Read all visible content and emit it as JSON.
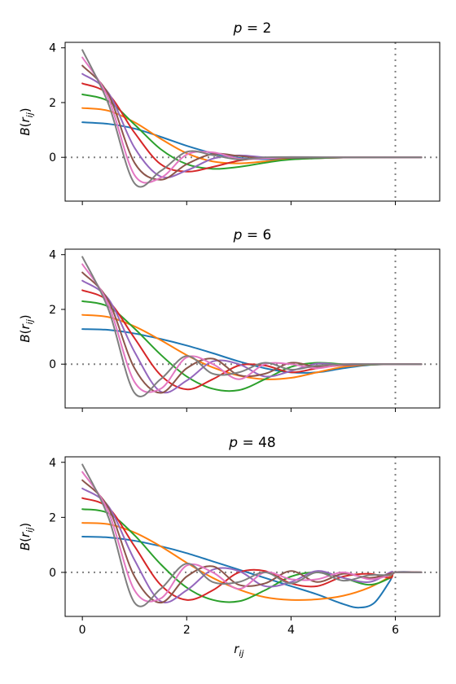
{
  "chart_data": [
    {
      "type": "line",
      "title": "p = 2",
      "p": 2,
      "ylabel": "B(r_ij)",
      "xlabel": "",
      "xlim": [
        -0.33,
        6.85
      ],
      "ylim": [
        -1.6,
        4.2
      ],
      "xticks": [
        0,
        2,
        4,
        6
      ],
      "yticks": [
        0,
        2,
        4
      ],
      "show_xtick_labels": false,
      "reference_lines": {
        "y": 0,
        "x": 6,
        "style": "dotted",
        "color": "#808080"
      },
      "series": [
        {
          "color": "#1f77b4",
          "x": [
            0,
            0.5,
            1,
            1.5,
            2,
            2.5,
            3,
            3.5,
            4,
            5,
            6,
            6.5
          ],
          "y": [
            1.28,
            1.22,
            1.05,
            0.75,
            0.42,
            0.15,
            -0.02,
            -0.07,
            -0.05,
            -0.01,
            0,
            0
          ]
        },
        {
          "color": "#ff7f0e",
          "x": [
            0,
            0.5,
            1,
            1.5,
            2,
            2.5,
            3,
            3.5,
            4,
            5,
            6,
            6.5
          ],
          "y": [
            1.8,
            1.7,
            1.28,
            0.68,
            0.15,
            -0.15,
            -0.22,
            -0.15,
            -0.07,
            -0.01,
            0,
            0
          ]
        },
        {
          "color": "#2ca02c",
          "x": [
            0,
            0.5,
            1,
            1.5,
            2,
            2.5,
            3,
            3.5,
            4,
            5,
            6,
            6.5
          ],
          "y": [
            2.3,
            2.05,
            1.2,
            0.3,
            -0.25,
            -0.42,
            -0.35,
            -0.2,
            -0.08,
            -0.01,
            0,
            0
          ]
        },
        {
          "color": "#d62728",
          "x": [
            0,
            0.5,
            1,
            1.5,
            2,
            2.5,
            3,
            3.5,
            4,
            5,
            6,
            6.5
          ],
          "y": [
            2.7,
            2.3,
            0.9,
            -0.25,
            -0.52,
            -0.35,
            -0.12,
            -0.02,
            -0.01,
            0,
            0,
            0
          ]
        },
        {
          "color": "#9467bd",
          "x": [
            0,
            0.5,
            1,
            1.5,
            2,
            2.5,
            3,
            3.5,
            4,
            5,
            6,
            6.5
          ],
          "y": [
            3.05,
            2.35,
            0.35,
            -0.7,
            -0.48,
            -0.05,
            0.07,
            0,
            -0.02,
            0,
            0,
            0
          ]
        },
        {
          "color": "#8c564b",
          "x": [
            0,
            0.5,
            1,
            1.5,
            2,
            2.5,
            3,
            3.5,
            4,
            5,
            6,
            6.5
          ],
          "y": [
            3.35,
            2.3,
            -0.2,
            -0.82,
            -0.25,
            0.12,
            0.05,
            -0.04,
            -0.01,
            0,
            0,
            0
          ]
        },
        {
          "color": "#e377c2",
          "x": [
            0,
            0.5,
            1,
            1.5,
            2,
            2.5,
            3,
            3.5,
            4,
            5,
            6,
            6.5
          ],
          "y": [
            3.65,
            2.15,
            -0.65,
            -0.75,
            0.1,
            0.18,
            -0.05,
            -0.04,
            0.01,
            0,
            0,
            0
          ]
        },
        {
          "color": "#7f7f7f",
          "x": [
            0,
            0.5,
            1,
            1.5,
            2,
            2.5,
            3,
            3.5,
            4,
            5,
            6,
            6.5
          ],
          "y": [
            3.92,
            1.95,
            -0.95,
            -0.5,
            0.2,
            0.08,
            -0.08,
            0,
            0.01,
            0,
            0,
            0
          ]
        }
      ]
    },
    {
      "type": "line",
      "title": "p = 6",
      "p": 6,
      "ylabel": "B(r_ij)",
      "xlabel": "",
      "xlim": [
        -0.33,
        6.85
      ],
      "ylim": [
        -1.6,
        4.2
      ],
      "xticks": [
        0,
        2,
        4,
        6
      ],
      "yticks": [
        0,
        2,
        4
      ],
      "show_xtick_labels": false,
      "reference_lines": {
        "y": 0,
        "x": 6,
        "style": "dotted",
        "color": "#808080"
      },
      "series": [
        {
          "color": "#1f77b4",
          "x": [
            0,
            0.5,
            1,
            1.5,
            2,
            2.5,
            3,
            3.5,
            4,
            4.5,
            5,
            5.5,
            6,
            6.5
          ],
          "y": [
            1.28,
            1.25,
            1.12,
            0.92,
            0.68,
            0.4,
            0.1,
            -0.15,
            -0.3,
            -0.3,
            -0.15,
            -0.03,
            0,
            0
          ]
        },
        {
          "color": "#ff7f0e",
          "x": [
            0,
            0.5,
            1,
            1.5,
            2,
            2.5,
            3,
            3.5,
            4,
            4.5,
            5,
            5.5,
            6,
            6.5
          ],
          "y": [
            1.8,
            1.72,
            1.38,
            0.88,
            0.33,
            -0.12,
            -0.42,
            -0.55,
            -0.5,
            -0.3,
            -0.1,
            -0.02,
            0,
            0
          ]
        },
        {
          "color": "#2ca02c",
          "x": [
            0,
            0.5,
            1,
            1.5,
            2,
            2.5,
            3,
            3.5,
            4,
            4.5,
            5,
            5.5,
            6,
            6.5
          ],
          "y": [
            2.3,
            2.1,
            1.3,
            0.35,
            -0.45,
            -0.9,
            -0.95,
            -0.55,
            -0.1,
            0.05,
            0,
            -0.02,
            0,
            0
          ]
        },
        {
          "color": "#d62728",
          "x": [
            0,
            0.5,
            1,
            1.5,
            2,
            2.5,
            3,
            3.5,
            4,
            4.5,
            5,
            5.5,
            6,
            6.5
          ],
          "y": [
            2.7,
            2.3,
            0.95,
            -0.4,
            -0.92,
            -0.55,
            -0.05,
            -0.05,
            -0.3,
            -0.15,
            -0.03,
            -0.01,
            0,
            0
          ]
        },
        {
          "color": "#9467bd",
          "x": [
            0,
            0.5,
            1,
            1.5,
            2,
            2.5,
            3,
            3.5,
            4,
            4.5,
            5,
            5.5,
            6,
            6.5
          ],
          "y": [
            3.05,
            2.38,
            0.45,
            -1.0,
            -0.6,
            0.1,
            0.0,
            -0.45,
            -0.25,
            0.02,
            -0.03,
            0,
            0,
            0
          ]
        },
        {
          "color": "#8c564b",
          "x": [
            0,
            0.5,
            1,
            1.5,
            2,
            2.5,
            3,
            3.5,
            4,
            4.5,
            5,
            5.5,
            6,
            6.5
          ],
          "y": [
            3.35,
            2.32,
            -0.15,
            -1.05,
            -0.15,
            0.2,
            -0.4,
            -0.35,
            0.05,
            -0.1,
            -0.02,
            0,
            0,
            0
          ]
        },
        {
          "color": "#e377c2",
          "x": [
            0,
            0.5,
            1,
            1.5,
            2,
            2.5,
            3,
            3.5,
            4,
            4.5,
            5,
            5.5,
            6,
            6.5
          ],
          "y": [
            3.65,
            2.18,
            -0.65,
            -0.9,
            0.25,
            0.0,
            -0.55,
            0.0,
            0.0,
            -0.15,
            0,
            0,
            0,
            0
          ]
        },
        {
          "color": "#7f7f7f",
          "x": [
            0,
            0.5,
            1,
            1.5,
            2,
            2.5,
            3,
            3.5,
            4,
            4.5,
            5,
            5.5,
            6,
            6.5
          ],
          "y": [
            3.92,
            2.0,
            -1.05,
            -0.55,
            0.3,
            -0.35,
            -0.3,
            0.05,
            -0.2,
            -0.05,
            0,
            0,
            0,
            0
          ]
        }
      ]
    },
    {
      "type": "line",
      "title": "p = 48",
      "p": 48,
      "ylabel": "B(r_ij)",
      "xlabel": "r_ij",
      "xlim": [
        -0.33,
        6.85
      ],
      "ylim": [
        -1.6,
        4.2
      ],
      "xticks": [
        0,
        2,
        4,
        6
      ],
      "yticks": [
        0,
        2,
        4
      ],
      "show_xtick_labels": true,
      "reference_lines": {
        "y": 0,
        "x": 6,
        "style": "dotted",
        "color": "#808080"
      },
      "series": [
        {
          "color": "#1f77b4",
          "x": [
            0,
            0.5,
            1,
            1.5,
            2,
            2.5,
            3,
            3.5,
            4,
            4.5,
            5,
            5.3,
            5.6,
            5.9,
            6,
            6.5
          ],
          "y": [
            1.3,
            1.27,
            1.15,
            0.95,
            0.7,
            0.4,
            0.1,
            -0.2,
            -0.5,
            -0.8,
            -1.15,
            -1.28,
            -1.1,
            -0.3,
            0,
            0
          ]
        },
        {
          "color": "#ff7f0e",
          "x": [
            0,
            0.5,
            1,
            1.5,
            2,
            2.5,
            3,
            3.5,
            4,
            4.5,
            5,
            5.5,
            5.9,
            6,
            6.5
          ],
          "y": [
            1.8,
            1.75,
            1.45,
            0.95,
            0.35,
            -0.2,
            -0.62,
            -0.9,
            -1.0,
            -0.98,
            -0.85,
            -0.55,
            -0.15,
            0,
            0
          ]
        },
        {
          "color": "#2ca02c",
          "x": [
            0,
            0.5,
            1,
            1.5,
            2,
            2.5,
            3,
            3.5,
            4,
            4.5,
            5,
            5.5,
            5.9,
            6,
            6.5
          ],
          "y": [
            2.3,
            2.15,
            1.35,
            0.3,
            -0.55,
            -1.0,
            -1.05,
            -0.65,
            -0.15,
            0.0,
            -0.2,
            -0.45,
            -0.2,
            0,
            0
          ]
        },
        {
          "color": "#d62728",
          "x": [
            0,
            0.5,
            1,
            1.5,
            2,
            2.5,
            3,
            3.5,
            4,
            4.5,
            5,
            5.5,
            5.9,
            6,
            6.5
          ],
          "y": [
            2.7,
            2.35,
            0.95,
            -0.45,
            -1.0,
            -0.65,
            0.0,
            0.05,
            -0.4,
            -0.5,
            -0.15,
            -0.05,
            -0.2,
            0,
            0
          ]
        },
        {
          "color": "#9467bd",
          "x": [
            0,
            0.5,
            1,
            1.5,
            2,
            2.5,
            3,
            3.5,
            4,
            4.5,
            5,
            5.5,
            5.9,
            6,
            6.5
          ],
          "y": [
            3.05,
            2.4,
            0.45,
            -1.05,
            -0.65,
            0.1,
            0.05,
            -0.5,
            -0.35,
            0.05,
            -0.2,
            -0.35,
            0.0,
            0,
            0
          ]
        },
        {
          "color": "#8c564b",
          "x": [
            0,
            0.5,
            1,
            1.5,
            2,
            2.5,
            3,
            3.5,
            4,
            4.5,
            5,
            5.5,
            5.9,
            6,
            6.5
          ],
          "y": [
            3.35,
            2.35,
            -0.15,
            -1.1,
            -0.15,
            0.22,
            -0.45,
            -0.4,
            0.05,
            -0.35,
            -0.05,
            -0.2,
            -0.05,
            0,
            0
          ]
        },
        {
          "color": "#e377c2",
          "x": [
            0,
            0.5,
            1,
            1.5,
            2,
            2.5,
            3,
            3.5,
            4,
            4.5,
            5,
            5.5,
            5.9,
            6,
            6.5
          ],
          "y": [
            3.65,
            2.2,
            -0.65,
            -0.95,
            0.25,
            0.0,
            -0.6,
            0.0,
            -0.25,
            -0.25,
            0.0,
            -0.25,
            -0.1,
            0,
            0
          ]
        },
        {
          "color": "#7f7f7f",
          "x": [
            0,
            0.5,
            1,
            1.5,
            2,
            2.5,
            3,
            3.5,
            4,
            4.5,
            5,
            5.5,
            5.9,
            6,
            6.5
          ],
          "y": [
            3.92,
            2.0,
            -1.1,
            -0.6,
            0.32,
            -0.35,
            -0.35,
            0.0,
            -0.4,
            0.0,
            -0.3,
            -0.1,
            -0.1,
            0,
            0
          ]
        }
      ]
    }
  ]
}
